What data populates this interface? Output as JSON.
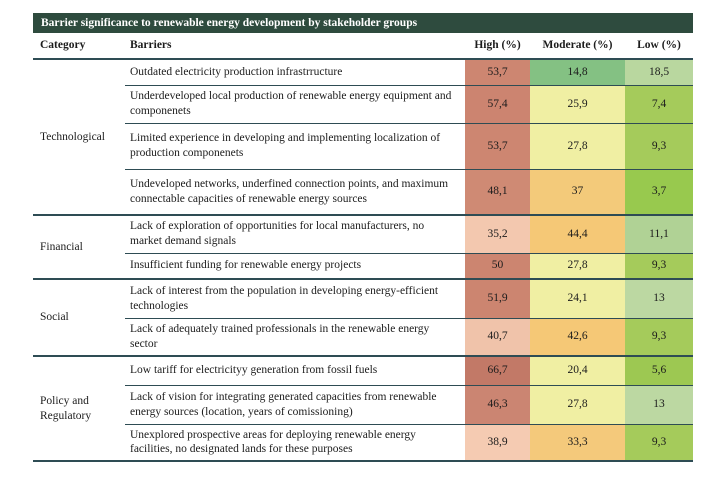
{
  "title": "Barrier significance to renewable energy development by stakeholder groups",
  "columns": {
    "category": "Category",
    "barriers": "Barriers",
    "high": "High (%)",
    "moderate": "Moderate (%)",
    "low": "Low (%)"
  },
  "colors": {
    "title_bar_bg": "#2e4b3e",
    "title_bar_text": "#ffffff",
    "rule": "#2e4c54",
    "text": "#1c1c1c"
  },
  "groups": [
    {
      "category": "Technological",
      "rows": [
        {
          "barrier": "Outdated electricity production infrastrructure",
          "high": {
            "value": "53,7",
            "bg": "#cd8671"
          },
          "moderate": {
            "value": "14,8",
            "bg": "#84c183"
          },
          "low": {
            "value": "18,5",
            "bg": "#b9d79f"
          }
        },
        {
          "barrier": "Underdeveloped local production of renewable energy equipment and componenets",
          "high": {
            "value": "57,4",
            "bg": "#cc8470"
          },
          "moderate": {
            "value": "25,9",
            "bg": "#f0efa3"
          },
          "low": {
            "value": "7,4",
            "bg": "#a5cb5b"
          }
        },
        {
          "barrier": "Limited experience in developing and implementing localization of production componenets",
          "high": {
            "value": "53,7",
            "bg": "#cd8671"
          },
          "moderate": {
            "value": "27,8",
            "bg": "#f0efa3"
          },
          "low": {
            "value": "9,3",
            "bg": "#a5cb5b"
          }
        },
        {
          "barrier": "Undeveloped networks, underfined connection points, and maximum connectable capacities of renewable energy sources",
          "high": {
            "value": "48,1",
            "bg": "#cf8a74"
          },
          "moderate": {
            "value": "37",
            "bg": "#f3ca7a"
          },
          "low": {
            "value": "3,7",
            "bg": "#98c94e"
          }
        }
      ]
    },
    {
      "category": "Financial",
      "rows": [
        {
          "barrier": "Lack of exploration of opportunities for local manufacturers, no market demand signals",
          "high": {
            "value": "35,2",
            "bg": "#f3c8af"
          },
          "moderate": {
            "value": "44,4",
            "bg": "#f5c876"
          },
          "low": {
            "value": "11,1",
            "bg": "#b0d295"
          }
        },
        {
          "barrier": "Insufficient funding for renewable energy projects",
          "high": {
            "value": "50",
            "bg": "#cc8570"
          },
          "moderate": {
            "value": "27,8",
            "bg": "#f0efa3"
          },
          "low": {
            "value": "9,3",
            "bg": "#a5cb5b"
          }
        }
      ]
    },
    {
      "category": "Social",
      "rows": [
        {
          "barrier": "Lack of interest from the population in developing energy-efficient technologies",
          "high": {
            "value": "51,9",
            "bg": "#cc8570"
          },
          "moderate": {
            "value": "24,1",
            "bg": "#f0efa3"
          },
          "low": {
            "value": "13",
            "bg": "#bcd8a2"
          }
        },
        {
          "barrier": "Lack of adequately trained professionals in the renewable energy sector",
          "high": {
            "value": "40,7",
            "bg": "#f0c3aa"
          },
          "moderate": {
            "value": "42,6",
            "bg": "#f5c876"
          },
          "low": {
            "value": "9,3",
            "bg": "#a5cb5b"
          }
        }
      ]
    },
    {
      "category": "Policy and Regulatory",
      "rows": [
        {
          "barrier": "Low tariff for electricityy generation from fossil fuels",
          "high": {
            "value": "66,7",
            "bg": "#c27967"
          },
          "moderate": {
            "value": "20,4",
            "bg": "#f0efa3"
          },
          "low": {
            "value": "5,6",
            "bg": "#9dc852"
          }
        },
        {
          "barrier": "Lack of vision for integrating generated capacities from renewable energy sources (location, years of comissioning)",
          "high": {
            "value": "46,3",
            "bg": "#cb8572"
          },
          "moderate": {
            "value": "27,8",
            "bg": "#f0efa3"
          },
          "low": {
            "value": "13",
            "bg": "#bcd8a2"
          }
        },
        {
          "barrier": "Unexplored prospective areas for deploying renewable energy facilities, no designated lands for these purposes",
          "high": {
            "value": "38,9",
            "bg": "#f5cbb2"
          },
          "moderate": {
            "value": "33,3",
            "bg": "#f4c97b"
          },
          "low": {
            "value": "9,3",
            "bg": "#a5cb5b"
          }
        }
      ]
    }
  ],
  "chart_data": {
    "type": "heatmap",
    "title": "Barrier significance to renewable energy development by stakeholder groups",
    "row_groups": [
      {
        "category": "Technological",
        "row_count": 4
      },
      {
        "category": "Financial",
        "row_count": 2
      },
      {
        "category": "Social",
        "row_count": 2
      },
      {
        "category": "Policy and Regulatory",
        "row_count": 3
      }
    ],
    "categories": [
      "Outdated electricity production infrastrructure",
      "Underdeveloped local production of renewable energy equipment and componenets",
      "Limited experience in developing and implementing localization of production componenets",
      "Undeveloped networks, underfined connection points, and maximum connectable capacities of renewable energy sources",
      "Lack of exploration of opportunities for local manufacturers, no market demand signals",
      "Insufficient funding for renewable energy projects",
      "Lack of interest from the population in developing energy-efficient technologies",
      "Lack of adequately trained professionals in the renewable energy sector",
      "Low tariff for electricityy generation from fossil fuels",
      "Lack of vision for integrating generated capacities from renewable energy sources (location, years of comissioning)",
      "Unexplored prospective areas for deploying renewable energy facilities, no designated lands for these purposes"
    ],
    "series": [
      {
        "name": "High (%)",
        "values": [
          53.7,
          57.4,
          53.7,
          48.1,
          35.2,
          50,
          51.9,
          40.7,
          66.7,
          46.3,
          38.9
        ]
      },
      {
        "name": "Moderate (%)",
        "values": [
          14.8,
          25.9,
          27.8,
          37,
          44.4,
          27.8,
          24.1,
          42.6,
          20.4,
          27.8,
          33.3
        ]
      },
      {
        "name": "Low (%)",
        "values": [
          18.5,
          7.4,
          9.3,
          3.7,
          11.1,
          9.3,
          13,
          9.3,
          5.6,
          13,
          9.3
        ]
      }
    ],
    "color_scale": "red (high value) -> yellow/amber (mid) -> green (low value)",
    "legend_position": "none",
    "grid": "horizontal rules only"
  }
}
